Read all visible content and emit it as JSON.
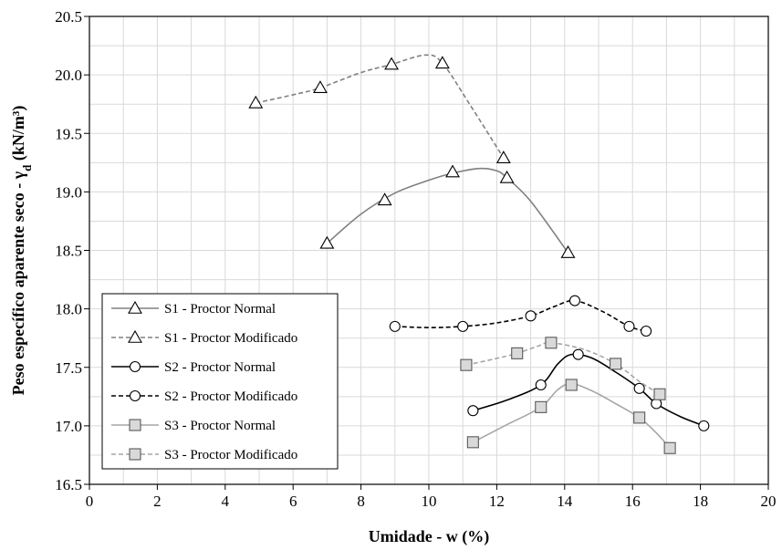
{
  "chart_data": {
    "type": "line",
    "xlabel": "Umidade - w (%)",
    "ylabel": "Peso específico aparente seco - γ",
    "ylabel_sub": "d",
    "ylabel_unit": " (kN/m³)",
    "xlim": [
      0,
      20
    ],
    "ylim": [
      16.5,
      20.5
    ],
    "xticks": [
      0,
      2,
      4,
      6,
      8,
      10,
      12,
      14,
      16,
      18,
      20
    ],
    "yticks": [
      16.5,
      17.0,
      17.5,
      18.0,
      18.5,
      19.0,
      19.5,
      20.0,
      20.5
    ],
    "ytick_labels": [
      "16.5",
      "17.0",
      "17.5",
      "18.0",
      "18.5",
      "19.0",
      "19.5",
      "20.0",
      "20.5"
    ],
    "grid": true,
    "legend_position": "bottom-left",
    "series": [
      {
        "name": "S1 - Proctor Normal",
        "marker": "triangle",
        "color": "#808080",
        "dashed": false,
        "points": [
          [
            7.0,
            18.56
          ],
          [
            8.7,
            18.93
          ],
          [
            10.7,
            19.17
          ],
          [
            12.3,
            19.12
          ],
          [
            14.1,
            18.48
          ]
        ],
        "curve": [
          [
            7.0,
            18.56
          ],
          [
            8.0,
            18.81
          ],
          [
            9.0,
            18.99
          ],
          [
            10.0,
            19.1
          ],
          [
            10.7,
            19.16
          ],
          [
            11.5,
            19.2
          ],
          [
            12.0,
            19.18
          ],
          [
            12.3,
            19.12
          ],
          [
            13.0,
            18.92
          ],
          [
            14.1,
            18.48
          ]
        ]
      },
      {
        "name": "S1 - Proctor Modificado",
        "marker": "triangle",
        "color": "#808080",
        "dashed": true,
        "points": [
          [
            4.9,
            19.76
          ],
          [
            6.8,
            19.89
          ],
          [
            8.9,
            20.09
          ],
          [
            10.4,
            20.1
          ],
          [
            12.2,
            19.29
          ]
        ],
        "curve": [
          [
            4.9,
            19.76
          ],
          [
            6.0,
            19.83
          ],
          [
            6.8,
            19.89
          ],
          [
            8.0,
            20.02
          ],
          [
            8.9,
            20.09
          ],
          [
            9.9,
            20.17
          ],
          [
            10.4,
            20.1
          ],
          [
            11.2,
            19.75
          ],
          [
            12.2,
            19.29
          ]
        ]
      },
      {
        "name": "S2 - Proctor Normal",
        "marker": "circle",
        "color": "#000000",
        "dashed": false,
        "points": [
          [
            11.3,
            17.13
          ],
          [
            13.3,
            17.35
          ],
          [
            14.4,
            17.61
          ],
          [
            16.2,
            17.32
          ],
          [
            16.7,
            17.19
          ],
          [
            18.1,
            17.0
          ]
        ],
        "curve": [
          [
            11.3,
            17.13
          ],
          [
            12.3,
            17.22
          ],
          [
            13.3,
            17.35
          ],
          [
            13.8,
            17.53
          ],
          [
            14.2,
            17.61
          ],
          [
            14.8,
            17.58
          ],
          [
            15.5,
            17.46
          ],
          [
            16.2,
            17.32
          ],
          [
            16.7,
            17.19
          ],
          [
            17.4,
            17.08
          ],
          [
            18.1,
            17.0
          ]
        ]
      },
      {
        "name": "S2 - Proctor Modificado",
        "marker": "circle",
        "color": "#000000",
        "dashed": true,
        "points": [
          [
            9.0,
            17.85
          ],
          [
            11.0,
            17.85
          ],
          [
            13.0,
            17.94
          ],
          [
            14.3,
            18.07
          ],
          [
            15.9,
            17.85
          ],
          [
            16.4,
            17.81
          ]
        ],
        "curve": [
          [
            9.0,
            17.85
          ],
          [
            10.0,
            17.84
          ],
          [
            11.0,
            17.85
          ],
          [
            12.0,
            17.88
          ],
          [
            13.0,
            17.94
          ],
          [
            13.7,
            18.02
          ],
          [
            14.3,
            18.07
          ],
          [
            15.1,
            17.98
          ],
          [
            15.9,
            17.85
          ],
          [
            16.4,
            17.81
          ]
        ]
      },
      {
        "name": "S3 - Proctor Normal",
        "marker": "square",
        "color": "#a6a6a6",
        "dashed": false,
        "points": [
          [
            11.3,
            16.86
          ],
          [
            13.3,
            17.16
          ],
          [
            14.2,
            17.35
          ],
          [
            16.2,
            17.07
          ],
          [
            17.1,
            16.81
          ]
        ],
        "curve": [
          [
            11.3,
            16.86
          ],
          [
            12.3,
            17.01
          ],
          [
            13.3,
            17.16
          ],
          [
            13.8,
            17.31
          ],
          [
            14.2,
            17.36
          ],
          [
            14.8,
            17.3
          ],
          [
            15.5,
            17.19
          ],
          [
            16.2,
            17.07
          ],
          [
            16.7,
            16.94
          ],
          [
            17.1,
            16.81
          ]
        ]
      },
      {
        "name": "S3 - Proctor Modificado",
        "marker": "square",
        "color": "#a6a6a6",
        "dashed": true,
        "points": [
          [
            11.1,
            17.52
          ],
          [
            12.6,
            17.62
          ],
          [
            13.6,
            17.71
          ],
          [
            15.5,
            17.53
          ],
          [
            16.8,
            17.27
          ]
        ],
        "curve": [
          [
            11.1,
            17.52
          ],
          [
            11.9,
            17.57
          ],
          [
            12.6,
            17.62
          ],
          [
            13.2,
            17.68
          ],
          [
            13.6,
            17.71
          ],
          [
            14.6,
            17.65
          ],
          [
            15.5,
            17.53
          ],
          [
            16.2,
            17.38
          ],
          [
            16.8,
            17.27
          ]
        ]
      }
    ]
  }
}
